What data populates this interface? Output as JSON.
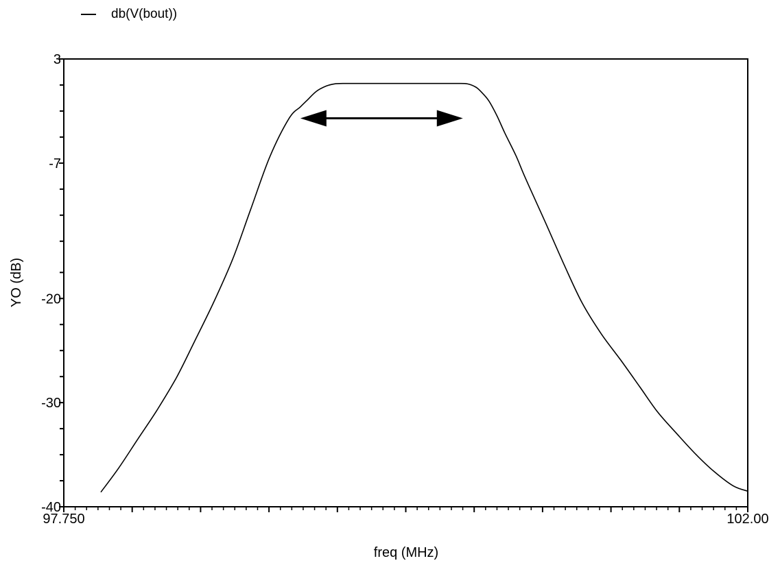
{
  "chart_data": {
    "type": "line",
    "title": "",
    "xlabel": "freq (MHz)",
    "ylabel": "YO (dB)",
    "xlim": [
      97.75,
      102.0
    ],
    "ylim": [
      -40,
      3
    ],
    "x_tick_labels": [
      {
        "value": 97.75,
        "label": "97.750"
      },
      {
        "value": 102.0,
        "label": "102.00"
      }
    ],
    "y_tick_labels": [
      {
        "value": 3,
        "label": "3"
      },
      {
        "value": -7,
        "label": "-7"
      },
      {
        "value": -20,
        "label": "-20"
      },
      {
        "value": -30,
        "label": "-30"
      },
      {
        "value": -40,
        "label": "-40"
      }
    ],
    "y_minor_ticks": [
      0.5,
      -2,
      -4.5,
      -9.5,
      -12,
      -14.5,
      -17.5,
      -22.5,
      -25,
      -27.5,
      -32.5,
      -35,
      -37.5
    ],
    "grid": false,
    "legend_position": "top-left",
    "series": [
      {
        "name": "db(V(bout))",
        "x": [
          97.98,
          98.09,
          98.21,
          98.33,
          98.45,
          98.56,
          98.68,
          98.8,
          98.91,
          99.03,
          99.15,
          99.22,
          99.26,
          99.32,
          99.38,
          99.43,
          99.49,
          99.6,
          99.72,
          99.8,
          99.95,
          100.07,
          100.2,
          100.26,
          100.31,
          100.34,
          100.39,
          100.44,
          100.49,
          100.56,
          100.62,
          100.74,
          100.86,
          100.97,
          101.09,
          101.21,
          101.33,
          101.44,
          101.56,
          101.68,
          101.79,
          101.91,
          102.0
        ],
        "y": [
          -38.6,
          -36.3,
          -33.5,
          -30.7,
          -27.6,
          -24.2,
          -20.4,
          -16.2,
          -11.5,
          -6.4,
          -2.7,
          -1.6,
          -1.0,
          -0.1,
          0.4,
          0.6,
          0.65,
          0.65,
          0.65,
          0.65,
          0.65,
          0.65,
          0.65,
          0.6,
          0.3,
          -0.1,
          -1.0,
          -2.4,
          -4.1,
          -6.3,
          -8.5,
          -12.6,
          -16.8,
          -20.4,
          -23.4,
          -25.9,
          -28.5,
          -30.9,
          -33.0,
          -35.0,
          -36.6,
          -38.0,
          -38.5
        ]
      }
    ],
    "annotations": [
      {
        "type": "double-arrow",
        "x_start": 99.22,
        "x_end": 100.23,
        "y": -2.7
      }
    ]
  }
}
